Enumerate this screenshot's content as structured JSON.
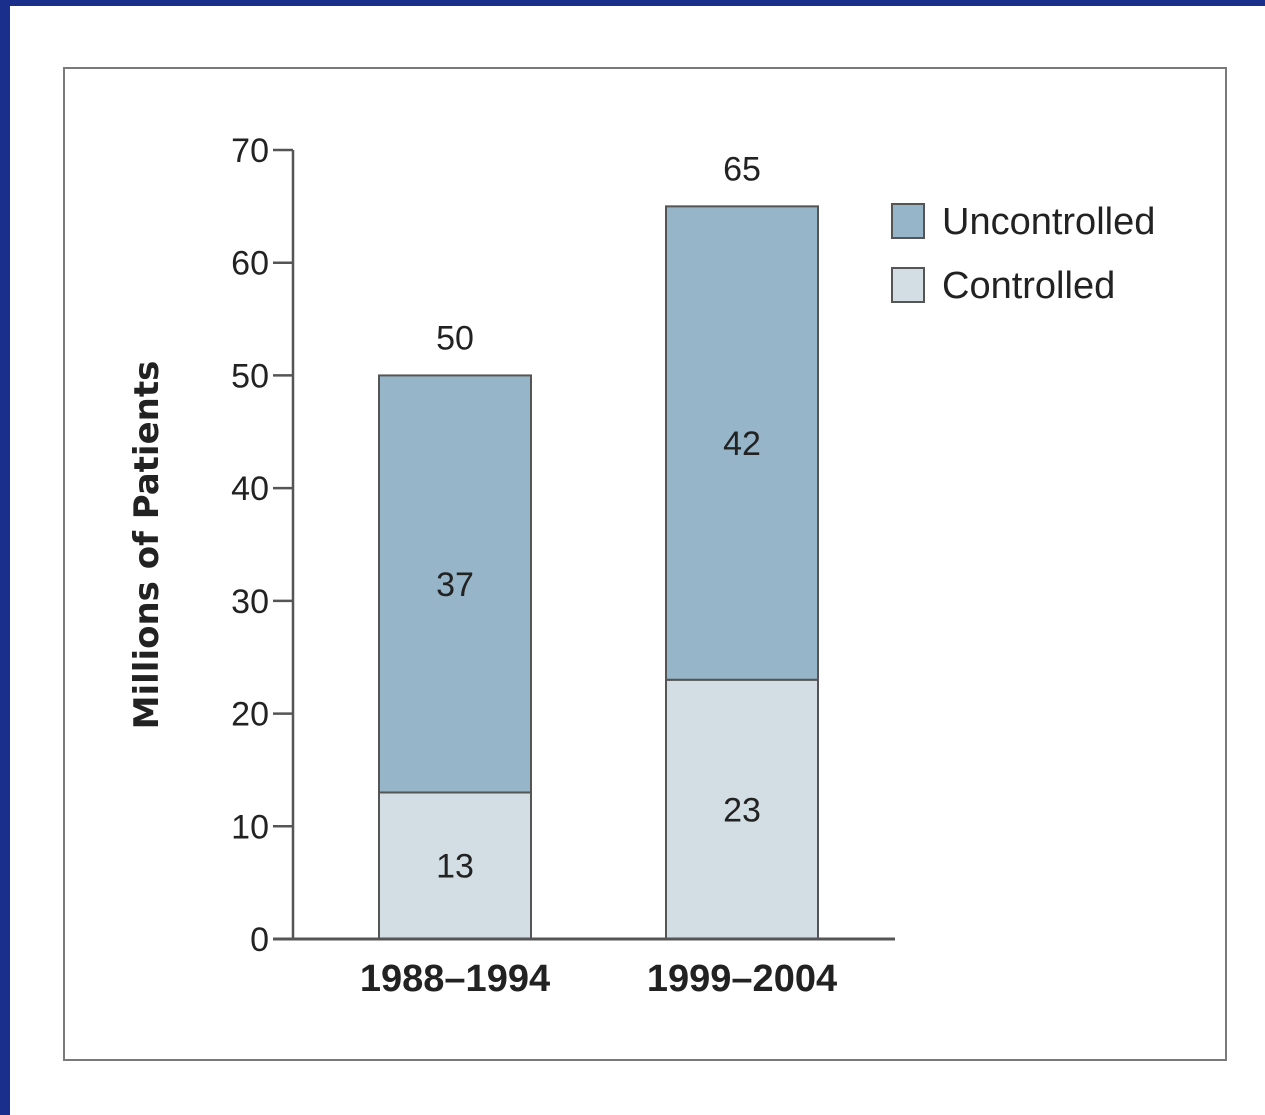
{
  "chart_data": {
    "type": "bar",
    "stacked": true,
    "categories": [
      "1988–1994",
      "1999–2004"
    ],
    "series": [
      {
        "name": "Controlled",
        "values": [
          13,
          23
        ],
        "color": "#d2dee4"
      },
      {
        "name": "Uncontrolled",
        "values": [
          37,
          42
        ],
        "color": "#97b5c8"
      }
    ],
    "totals": [
      50,
      65
    ],
    "ylabel": "Millions of Patients",
    "xlabel": "",
    "ylim": [
      0,
      70
    ],
    "yticks": [
      0,
      10,
      20,
      30,
      40,
      50,
      60,
      70
    ],
    "legend": {
      "position": "top-right",
      "entries": [
        {
          "label": "Uncontrolled",
          "color": "#97b5c8"
        },
        {
          "label": "Controlled",
          "color": "#d2dee4"
        }
      ]
    },
    "grid": false
  },
  "colors": {
    "background": "#1a2f8c",
    "axis": "#555555",
    "text": "#222222"
  }
}
